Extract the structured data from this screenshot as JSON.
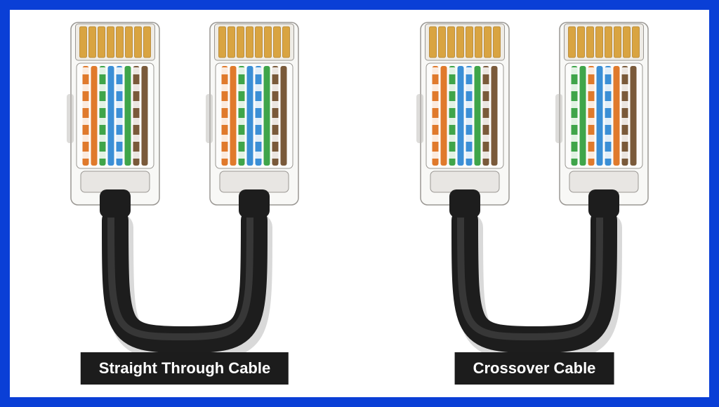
{
  "frame": {
    "border_color": "#0a3fd6",
    "background_color": "#ffffff"
  },
  "label": {
    "bg": "#1c1c1c",
    "fg": "#ffffff",
    "fontsize": 22
  },
  "cable": {
    "jacket_color": "#1d1d1d",
    "jacket_highlight": "#4a4a4a",
    "connector_body": "#e8e6e3",
    "connector_shadow": "#bcbab6",
    "connector_outline": "#9a9793",
    "pin_gold": "#d9a441",
    "pin_gold_dark": "#b3832d"
  },
  "t568b": [
    "#e07a2c",
    "#e07a2c",
    "#3fa54a",
    "#3b8fd6",
    "#3b8fd6",
    "#3fa54a",
    "#7a5a3a",
    "#7a5a3a"
  ],
  "t568a": [
    "#3fa54a",
    "#3fa54a",
    "#e07a2c",
    "#3b8fd6",
    "#3b8fd6",
    "#e07a2c",
    "#7a5a3a",
    "#7a5a3a"
  ],
  "striped": [
    true,
    false,
    true,
    false,
    true,
    false,
    true,
    false
  ],
  "items": [
    {
      "key": "straight-through",
      "label": "Straight Through Cable",
      "left_scheme": "t568b",
      "right_scheme": "t568b"
    },
    {
      "key": "crossover",
      "label": "Crossover Cable",
      "left_scheme": "t568b",
      "right_scheme": "t568a"
    }
  ]
}
